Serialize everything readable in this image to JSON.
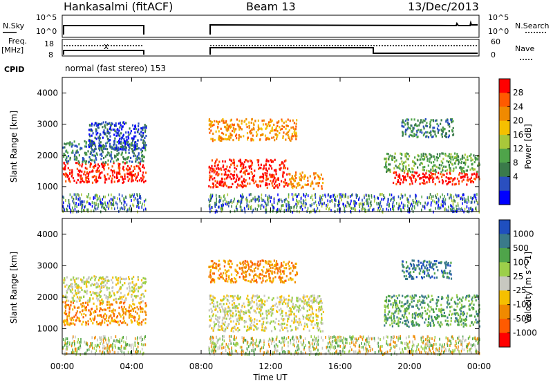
{
  "header": {
    "station": "Hankasalmi (fitACF)",
    "beam": "Beam 13",
    "date": "13/Dec/2013"
  },
  "noise_panel": {
    "left_label": "N.Sky",
    "right_label": "N.Search",
    "left_ticks": [
      "10^5",
      "10^0"
    ],
    "right_ticks": [
      "10^5",
      "10^0"
    ]
  },
  "freq_panel": {
    "left_label_1": "Freq.",
    "left_label_2": "[MHz]",
    "left_ticks": [
      "18",
      "8"
    ],
    "right_label": "Nave",
    "right_ticks": [
      "60",
      "0"
    ],
    "cpid_label": "CPID",
    "mode_text": "normal (fast stereo) 153"
  },
  "colors": {
    "power": [
      "#0000ff",
      "#2a4fbf",
      "#3a7a4a",
      "#4fa44a",
      "#a9c83a",
      "#f5c000",
      "#f08a00",
      "#ff5a00",
      "#ff0000"
    ],
    "velocity": [
      "#ff0000",
      "#ff5a00",
      "#f08a00",
      "#f5c000",
      "#c8c8c0",
      "#9ccf4a",
      "#4fa44a",
      "#3a7a8a",
      "#1f4fbf"
    ],
    "ground": "#c8c8c0"
  },
  "chart_data": [
    {
      "type": "heatmap",
      "title": "Power",
      "ylabel": "Slant Range [km]",
      "colorbar_label": "Power [dB]",
      "colorbar_ticks": [
        "28",
        "24",
        "20",
        "16",
        "12",
        "8",
        "4"
      ],
      "y_ticks": [
        "4000",
        "3000",
        "2000",
        "1000"
      ],
      "ylim": [
        200,
        4500
      ],
      "xlim": [
        0,
        24
      ],
      "regions": [
        {
          "t0": 0.0,
          "t1": 4.8,
          "r0": 1150,
          "r1": 1800,
          "level": 8
        },
        {
          "t0": 0.0,
          "t1": 4.8,
          "r0": 1800,
          "r1": 2500,
          "level": 2
        },
        {
          "t0": 1.5,
          "t1": 4.8,
          "r0": 2200,
          "r1": 3100,
          "level": 1
        },
        {
          "t0": 8.4,
          "t1": 13.0,
          "r0": 1000,
          "r1": 1900,
          "level": 8
        },
        {
          "t0": 8.4,
          "t1": 13.5,
          "r0": 2500,
          "r1": 3200,
          "level": 6
        },
        {
          "t0": 13.0,
          "t1": 15.0,
          "r0": 950,
          "r1": 1500,
          "level": 6
        },
        {
          "t0": 19.0,
          "t1": 24.0,
          "r0": 1100,
          "r1": 1500,
          "level": 8
        },
        {
          "t0": 18.5,
          "t1": 24.0,
          "r0": 1500,
          "r1": 2100,
          "level": 3
        },
        {
          "t0": 19.5,
          "t1": 22.5,
          "r0": 2600,
          "r1": 3200,
          "level": 2
        }
      ]
    },
    {
      "type": "heatmap",
      "title": "Velocity",
      "ylabel": "Slant Range [km]",
      "xlabel": "Time UT",
      "colorbar_label": "Velocity [m s^-1]",
      "colorbar_ticks": [
        "1000",
        "500",
        "100",
        "25",
        "-25",
        "-100",
        "-500",
        "-1000"
      ],
      "y_ticks": [
        "4000",
        "3000",
        "2000",
        "1000"
      ],
      "x_ticks": [
        "00:00",
        "04:00",
        "08:00",
        "12:00",
        "16:00",
        "20:00",
        "00:00"
      ],
      "ylim": [
        200,
        4500
      ],
      "xlim": [
        0,
        24
      ],
      "regions": [
        {
          "t0": 0.0,
          "t1": 4.8,
          "r0": 1150,
          "r1": 1900,
          "level": 2
        },
        {
          "t0": 0.0,
          "t1": 4.8,
          "r0": 1900,
          "r1": 2700,
          "level": 4
        },
        {
          "t0": 8.4,
          "t1": 15.0,
          "r0": 950,
          "r1": 2100,
          "level": 4
        },
        {
          "t0": 8.4,
          "t1": 13.5,
          "r0": 2500,
          "r1": 3200,
          "level": 2
        },
        {
          "t0": 18.5,
          "t1": 24.0,
          "r0": 1100,
          "r1": 2100,
          "level": 6
        },
        {
          "t0": 19.5,
          "t1": 22.5,
          "r0": 2600,
          "r1": 3200,
          "level": 7
        }
      ]
    }
  ]
}
